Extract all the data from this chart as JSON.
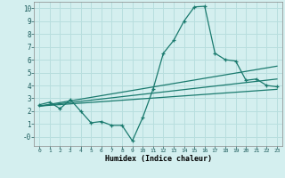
{
  "xlabel": "Humidex (Indice chaleur)",
  "background_color": "#d4efef",
  "grid_color": "#b8dede",
  "line_color": "#1a7a6e",
  "xlim": [
    -0.5,
    23.5
  ],
  "ylim": [
    -0.7,
    10.5
  ],
  "x_ticks": [
    0,
    1,
    2,
    3,
    4,
    5,
    6,
    7,
    8,
    9,
    10,
    11,
    12,
    13,
    14,
    15,
    16,
    17,
    18,
    19,
    20,
    21,
    22,
    23
  ],
  "y_ticks": [
    0,
    1,
    2,
    3,
    4,
    5,
    6,
    7,
    8,
    9,
    10
  ],
  "curve1_x": [
    0,
    1,
    2,
    3,
    4,
    5,
    6,
    7,
    8,
    9,
    10,
    11,
    12,
    13,
    14,
    15,
    16,
    17,
    18,
    19,
    20,
    21,
    22,
    23
  ],
  "curve1_y": [
    2.5,
    2.7,
    2.2,
    2.9,
    2.0,
    1.1,
    1.2,
    0.9,
    0.9,
    -0.3,
    1.5,
    3.7,
    6.5,
    7.5,
    9.0,
    10.1,
    10.15,
    6.5,
    6.0,
    5.9,
    4.4,
    4.5,
    4.0,
    3.9
  ],
  "curve2_x": [
    0,
    23
  ],
  "curve2_y": [
    2.4,
    5.5
  ],
  "curve3_x": [
    0,
    23
  ],
  "curve3_y": [
    2.4,
    3.7
  ],
  "curve4_x": [
    0,
    23
  ],
  "curve4_y": [
    2.4,
    4.5
  ]
}
